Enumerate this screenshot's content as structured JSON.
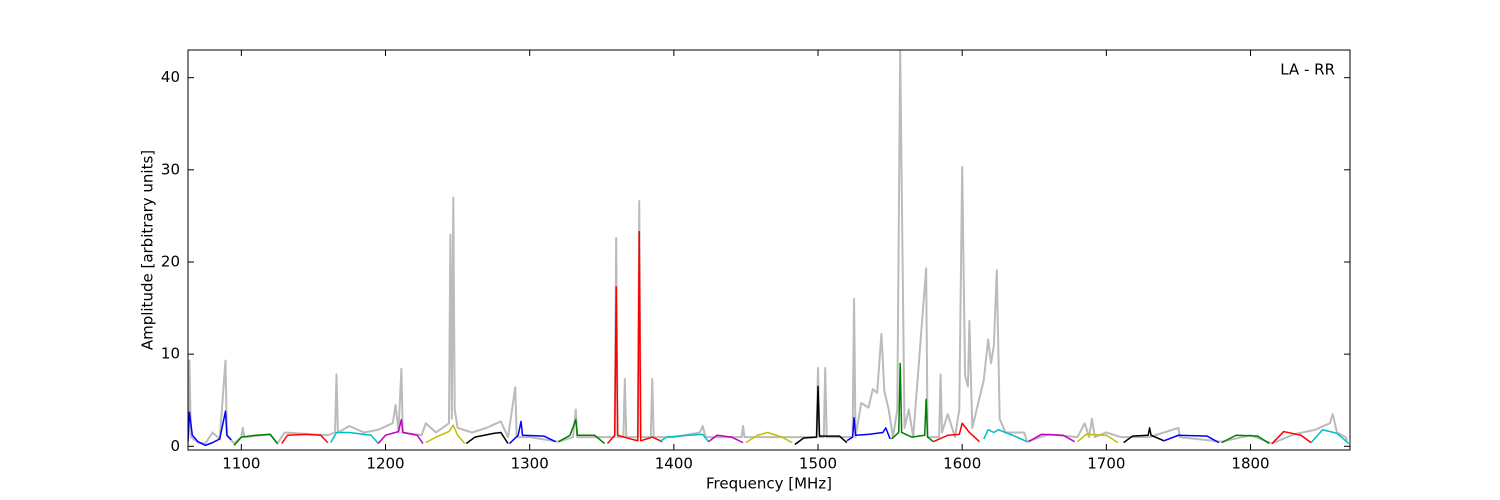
{
  "chart_data": {
    "type": "line",
    "annotation": "LA - RR",
    "x_label": "Frequency [MHz]",
    "y_label": "Amplitude [arbitrary units]",
    "xlim": [
      1063,
      1869
    ],
    "ylim": [
      -0.4,
      43
    ],
    "xticks": [
      1100,
      1200,
      1300,
      1400,
      1500,
      1600,
      1700,
      1800
    ],
    "yticks": [
      0,
      10,
      20,
      30,
      40
    ],
    "grid": false,
    "series": [
      {
        "color": "#bbbbbb",
        "x": [
          1063,
          1064,
          1065,
          1070,
          1075,
          1080,
          1085,
          1089,
          1090,
          1095,
          1100,
          1101,
          1102,
          1120,
          1125,
          1130,
          1160,
          1165,
          1166,
          1167,
          1175,
          1185,
          1195,
          1205,
          1207,
          1209,
          1211,
          1212,
          1225,
          1228,
          1235,
          1244,
          1245,
          1246,
          1247,
          1248,
          1250,
          1260,
          1270,
          1280,
          1285,
          1290,
          1291,
          1300,
          1320,
          1330,
          1332,
          1333,
          1350,
          1359,
          1360,
          1361,
          1365,
          1366,
          1367,
          1375,
          1376,
          1377,
          1384,
          1385,
          1386,
          1400,
          1418,
          1420,
          1422,
          1447,
          1448,
          1449,
          1480,
          1499,
          1500,
          1501,
          1504,
          1505,
          1506,
          1524,
          1525,
          1526,
          1530,
          1535,
          1538,
          1541,
          1544,
          1546,
          1549,
          1552,
          1555,
          1557,
          1558,
          1560,
          1563,
          1566,
          1575,
          1576,
          1584,
          1585,
          1586,
          1590,
          1595,
          1598,
          1600,
          1602,
          1604,
          1605,
          1607,
          1615,
          1618,
          1620,
          1622,
          1624,
          1626,
          1630,
          1643,
          1645,
          1660,
          1680,
          1685,
          1688,
          1690,
          1692,
          1700,
          1710,
          1730,
          1750,
          1751,
          1780,
          1800,
          1815,
          1830,
          1845,
          1855,
          1857,
          1860,
          1866,
          1867
        ],
        "values": [
          0.5,
          9.3,
          1,
          0.4,
          0.3,
          1.5,
          0.8,
          9.3,
          1.2,
          0.3,
          1.0,
          2.0,
          1.0,
          1.3,
          0.3,
          1.5,
          1.2,
          1.5,
          7.8,
          1.5,
          2.2,
          1.5,
          1.8,
          2.5,
          4.5,
          1.5,
          8.4,
          1.5,
          1.2,
          2.5,
          1.5,
          2.5,
          23,
          3,
          27,
          4,
          2,
          1.5,
          2,
          2.7,
          1,
          6.4,
          1,
          1,
          0.5,
          1,
          4,
          1,
          1,
          1,
          22.6,
          1,
          1,
          7.3,
          1,
          1,
          26.6,
          1,
          1,
          7.3,
          1,
          1,
          1.5,
          2.2,
          1,
          1,
          2.2,
          1,
          1,
          1,
          8.5,
          1,
          1,
          8.5,
          1,
          1,
          16,
          1,
          4.7,
          4.2,
          6.2,
          5.8,
          12.2,
          6,
          4,
          1,
          4,
          43,
          29,
          2,
          4,
          1,
          19.3,
          1,
          1,
          7.8,
          1.5,
          3.5,
          1,
          4,
          30.3,
          7.7,
          6.5,
          13.6,
          2,
          7.2,
          11.6,
          9,
          11,
          19.1,
          3,
          1.5,
          1.5,
          0.5,
          1.3,
          1,
          2.5,
          1,
          3,
          1,
          1.5,
          1,
          1,
          2,
          1,
          0.5,
          1.2,
          0.3,
          1.3,
          1.8,
          2.5,
          3.5,
          1.5,
          1.0,
          0.6
        ]
      },
      {
        "color": "#0000ff",
        "x": [
          1063,
          1064,
          1066,
          1070,
          1075,
          1080,
          1085,
          1089,
          1090,
          1093
        ],
        "values": [
          0.5,
          3.7,
          1.2,
          0.5,
          0.1,
          0.4,
          0.8,
          3.8,
          1.2,
          0.7
        ]
      },
      {
        "color": "#008000",
        "x": [
          1095,
          1100,
          1110,
          1120,
          1125
        ],
        "values": [
          0.1,
          1.0,
          1.2,
          1.3,
          0.3
        ]
      },
      {
        "color": "#ff0000",
        "x": [
          1128,
          1132,
          1145,
          1155,
          1160
        ],
        "values": [
          0.3,
          1.2,
          1.3,
          1.2,
          0.4
        ]
      },
      {
        "color": "#00bfbf",
        "x": [
          1162,
          1166,
          1175,
          1190,
          1195
        ],
        "values": [
          0.4,
          1.5,
          1.5,
          1.2,
          0.3
        ]
      },
      {
        "color": "#bf00bf",
        "x": [
          1195,
          1200,
          1209,
          1211,
          1212,
          1222,
          1226
        ],
        "values": [
          0.3,
          1.2,
          1.6,
          2.9,
          1.5,
          1.2,
          0.3
        ]
      },
      {
        "color": "#bfbf00",
        "x": [
          1228,
          1235,
          1244,
          1247,
          1250,
          1255
        ],
        "values": [
          0.4,
          1.0,
          1.6,
          2.3,
          1.2,
          0.3
        ]
      },
      {
        "color": "#000000",
        "x": [
          1256,
          1262,
          1275,
          1280,
          1285
        ],
        "values": [
          0.3,
          1.0,
          1.4,
          1.5,
          0.3
        ]
      },
      {
        "color": "#0000ff",
        "x": [
          1286,
          1292,
          1294,
          1295,
          1310,
          1318
        ],
        "values": [
          0.3,
          1.2,
          2.7,
          1.2,
          1.1,
          0.5
        ]
      },
      {
        "color": "#008000",
        "x": [
          1320,
          1328,
          1332,
          1333,
          1345,
          1352
        ],
        "values": [
          0.5,
          1.2,
          2.9,
          1.2,
          1.2,
          0.3
        ]
      },
      {
        "color": "#ff0000",
        "x": [
          1354,
          1359,
          1360,
          1361,
          1370,
          1375,
          1376,
          1377,
          1385,
          1392
        ],
        "values": [
          0.3,
          1.2,
          17.3,
          1.2,
          0.8,
          0.6,
          23.3,
          0.6,
          1.0,
          0.5
        ]
      },
      {
        "color": "#00bfbf",
        "x": [
          1390,
          1395,
          1410,
          1420,
          1424
        ],
        "values": [
          0.5,
          1.0,
          1.2,
          1.3,
          0.5
        ]
      },
      {
        "color": "#bf00bf",
        "x": [
          1424,
          1430,
          1440,
          1448
        ],
        "values": [
          0.5,
          1.2,
          1.0,
          0.4
        ]
      },
      {
        "color": "#bfbf00",
        "x": [
          1450,
          1458,
          1465,
          1475,
          1482
        ],
        "values": [
          0.4,
          1.2,
          1.5,
          1.0,
          0.4
        ]
      },
      {
        "color": "#000000",
        "x": [
          1484,
          1490,
          1499,
          1500,
          1501,
          1515,
          1520
        ],
        "values": [
          0.2,
          0.9,
          1.0,
          6.5,
          1.1,
          1.1,
          0.4
        ]
      },
      {
        "color": "#0000ff",
        "x": [
          1520,
          1524,
          1525,
          1526,
          1535,
          1545,
          1547,
          1550
        ],
        "values": [
          0.6,
          1.0,
          3.1,
          1.2,
          1.3,
          1.5,
          2.0,
          0.8
        ]
      },
      {
        "color": "#008000",
        "x": [
          1551,
          1556,
          1557,
          1558,
          1565,
          1574,
          1575,
          1576,
          1580
        ],
        "values": [
          0.8,
          1.5,
          9.0,
          1.5,
          1.0,
          1.2,
          5.1,
          1.0,
          0.5
        ]
      },
      {
        "color": "#ff0000",
        "x": [
          1580,
          1590,
          1598,
          1600,
          1605,
          1612
        ],
        "values": [
          0.5,
          1.2,
          1.3,
          2.5,
          1.5,
          0.5
        ]
      },
      {
        "color": "#00bfbf",
        "x": [
          1615,
          1618,
          1622,
          1625,
          1635,
          1645
        ],
        "values": [
          0.8,
          1.8,
          1.5,
          1.8,
          1.2,
          0.5
        ]
      },
      {
        "color": "#bf00bf",
        "x": [
          1646,
          1655,
          1670,
          1678
        ],
        "values": [
          0.5,
          1.3,
          1.2,
          0.5
        ]
      },
      {
        "color": "#bfbf00",
        "x": [
          1680,
          1686,
          1700,
          1708
        ],
        "values": [
          0.5,
          1.3,
          1.2,
          0.4
        ]
      },
      {
        "color": "#000000",
        "x": [
          1712,
          1718,
          1729,
          1730,
          1731,
          1740
        ],
        "values": [
          0.4,
          1.1,
          1.2,
          2.0,
          1.2,
          0.6
        ]
      },
      {
        "color": "#0000ff",
        "x": [
          1740,
          1750,
          1770,
          1778
        ],
        "values": [
          0.6,
          1.2,
          1.1,
          0.4
        ]
      },
      {
        "color": "#008000",
        "x": [
          1780,
          1790,
          1805,
          1813
        ],
        "values": [
          0.4,
          1.2,
          1.1,
          0.3
        ]
      },
      {
        "color": "#ff0000",
        "x": [
          1815,
          1823,
          1835,
          1842
        ],
        "values": [
          0.3,
          1.6,
          1.2,
          0.4
        ]
      },
      {
        "color": "#00bfbf",
        "x": [
          1842,
          1850,
          1860,
          1866,
          1868
        ],
        "values": [
          0.4,
          1.8,
          1.4,
          0.6,
          0.3
        ]
      }
    ]
  }
}
